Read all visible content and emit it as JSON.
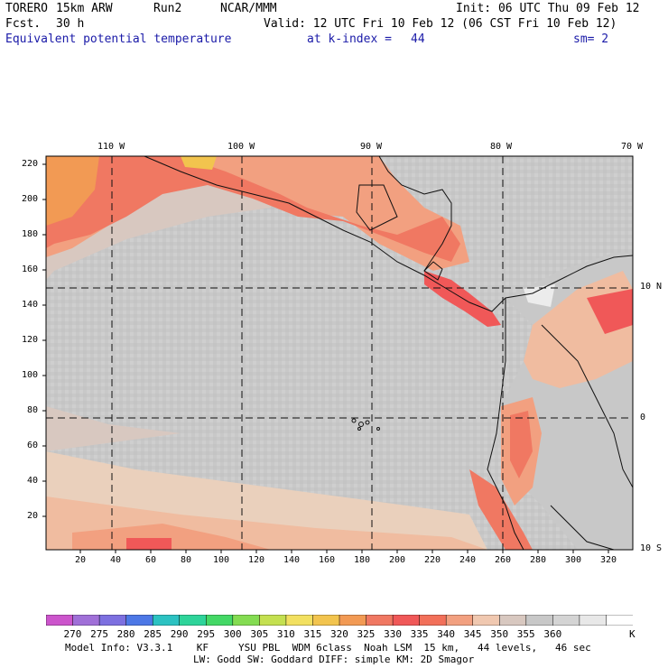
{
  "header": {
    "model": "TORERO",
    "resolution": "15km ARW",
    "run": "Run2",
    "org": "NCAR/MMM",
    "init": "Init: 06 UTC Thu 09 Feb 12",
    "fcst_label": "Fcst.",
    "fcst_value": "30 h",
    "valid": "Valid: 12 UTC Fri 10 Feb 12 (06 CST Fri 10 Feb 12)",
    "field": "Equivalent potential temperature",
    "level": "at k-index =",
    "level_value": "44",
    "smoothing": "sm= 2"
  },
  "map": {
    "lon_labels": [
      "110 W",
      "100 W",
      "90 W",
      "80 W",
      "70 W"
    ],
    "lat_labels": [
      "10 N",
      "0",
      "10 S"
    ],
    "y_ticks": [
      "220",
      "200",
      "180",
      "160",
      "140",
      "120",
      "100",
      "80",
      "60",
      "40",
      "20"
    ],
    "x_ticks": [
      "20",
      "40",
      "60",
      "80",
      "100",
      "120",
      "140",
      "160",
      "180",
      "200",
      "220",
      "240",
      "260",
      "280",
      "300",
      "320"
    ]
  },
  "colorbar": {
    "labels": [
      "270",
      "275",
      "280",
      "285",
      "290",
      "295",
      "300",
      "305",
      "310",
      "315",
      "320",
      "325",
      "330",
      "335",
      "340",
      "345",
      "350",
      "355",
      "360"
    ],
    "unit": "K",
    "colors": [
      "#cc55cc",
      "#a070d8",
      "#7d70e0",
      "#4d78e6",
      "#2cc2c2",
      "#2ed49a",
      "#44d866",
      "#84dc52",
      "#c4e050",
      "#f2e060",
      "#f2c44e",
      "#f29a54",
      "#f07862",
      "#f05858",
      "#f2705a",
      "#f2a080",
      "#f0c8b0",
      "#d8c8c0",
      "#c8c8c8",
      "#d4d4d4",
      "#e8e8e8",
      "#ffffff"
    ]
  },
  "footer": {
    "line1": "Model Info: V3.3.1    KF     YSU PBL  WDM 6class  Noah LSM  15 km,   44 levels,   46 sec",
    "line2": "LW: Godd SW: Goddard DIFF: simple KM: 2D Smagor"
  }
}
